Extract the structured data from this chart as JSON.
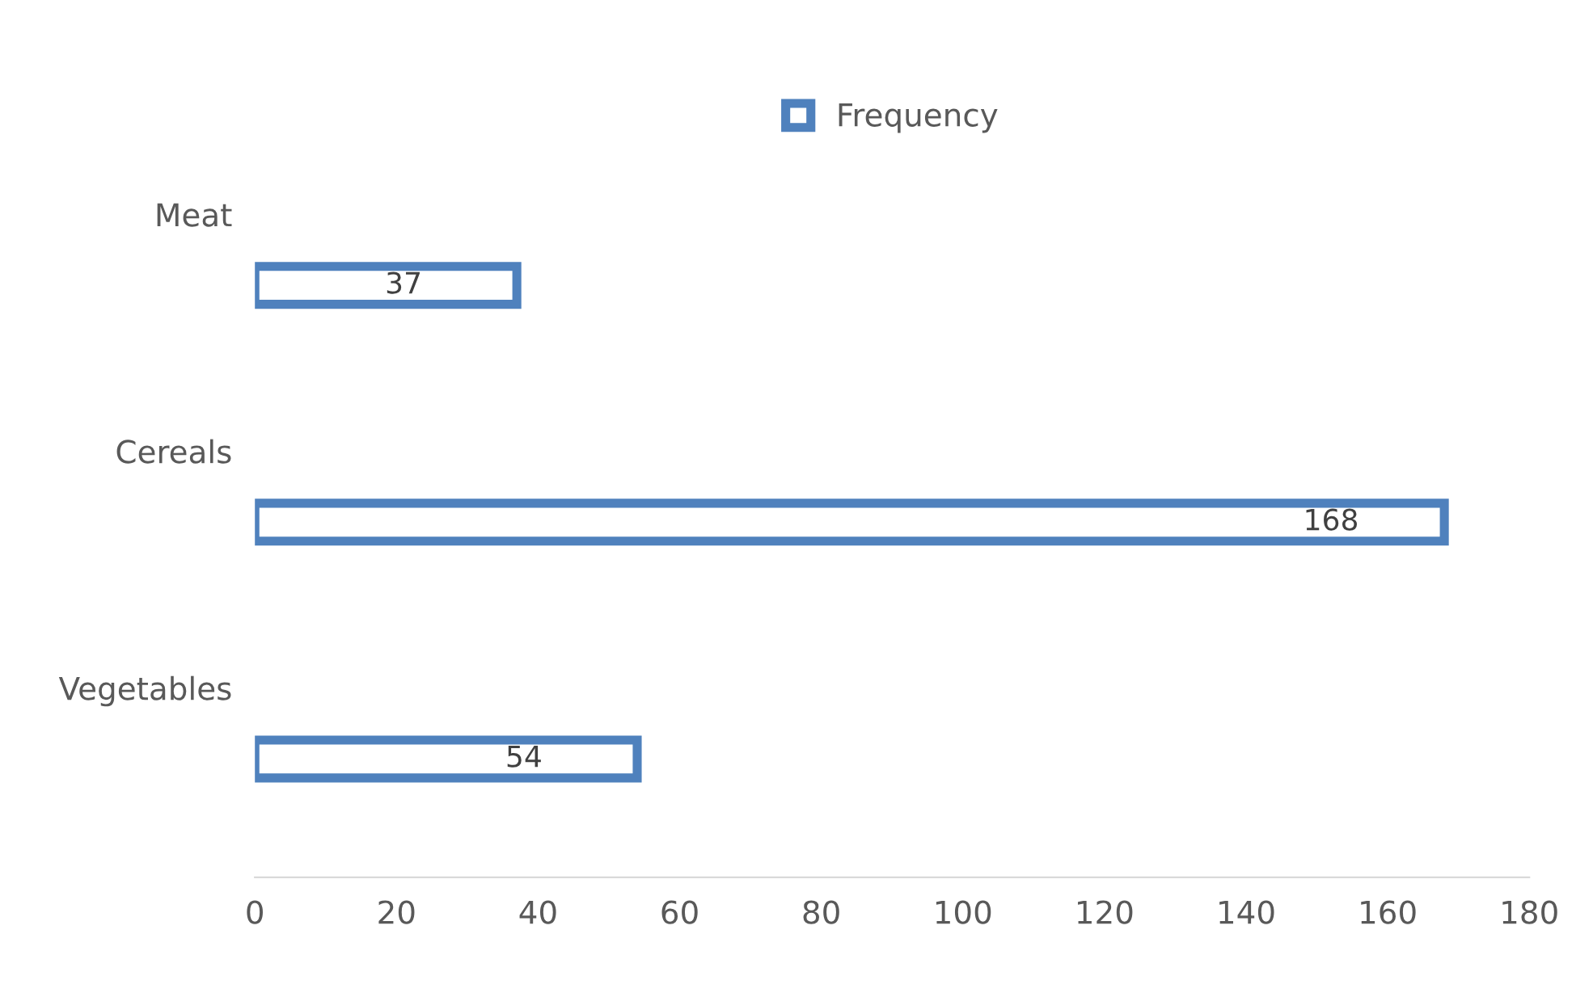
{
  "chart_data": {
    "type": "bar",
    "orientation": "horizontal",
    "categories": [
      "Meat",
      "Cereals",
      "Vegetables"
    ],
    "series": [
      {
        "name": "Frequency",
        "color": "#4f81bd",
        "values": [
          37,
          168,
          54
        ]
      }
    ],
    "xlim": [
      0,
      180
    ],
    "xticks": [
      0,
      20,
      40,
      60,
      80,
      100,
      120,
      140,
      160,
      180
    ],
    "data_labels": true,
    "legend": "top"
  }
}
